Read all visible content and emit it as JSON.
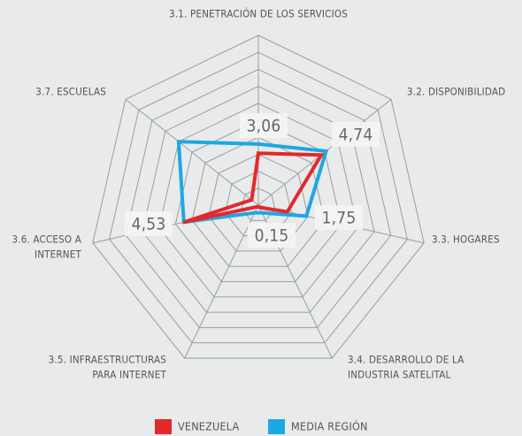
{
  "chart_data": {
    "type": "radar",
    "categories": [
      [
        "3.1. PENETRACIÓN DE LOS SERVICIOS"
      ],
      [
        "3.2. DISPONIBILIDAD"
      ],
      [
        "3.3. HOGARES"
      ],
      [
        "3.4. DESARROLLO DE LA",
        "INDUSTRIA SATELITAL"
      ],
      [
        "3.5. INFRAESTRUCTURAS",
        "PARA INTERNET"
      ],
      [
        "3.6. ACCESO A",
        "INTERNET"
      ],
      [
        "3.7. ESCUELAS"
      ]
    ],
    "rlim": [
      0,
      10
    ],
    "rticks": [
      1,
      2,
      3,
      4,
      5,
      6,
      7,
      8,
      9,
      10
    ],
    "series": [
      {
        "name": "VENEZUELA",
        "color": "#e4282b",
        "values": [
          3.06,
          4.74,
          1.75,
          0.15,
          0.1,
          4.53,
          0.5
        ],
        "value_labels": [
          "3,06",
          "4,74",
          "1,75",
          "0,15",
          null,
          "4,53",
          null
        ]
      },
      {
        "name": "MEDIA REGIÓN",
        "color": "#1ca8e2",
        "values": [
          3.6,
          5.1,
          2.9,
          0.5,
          0.5,
          4.5,
          6.0
        ]
      }
    ]
  }
}
